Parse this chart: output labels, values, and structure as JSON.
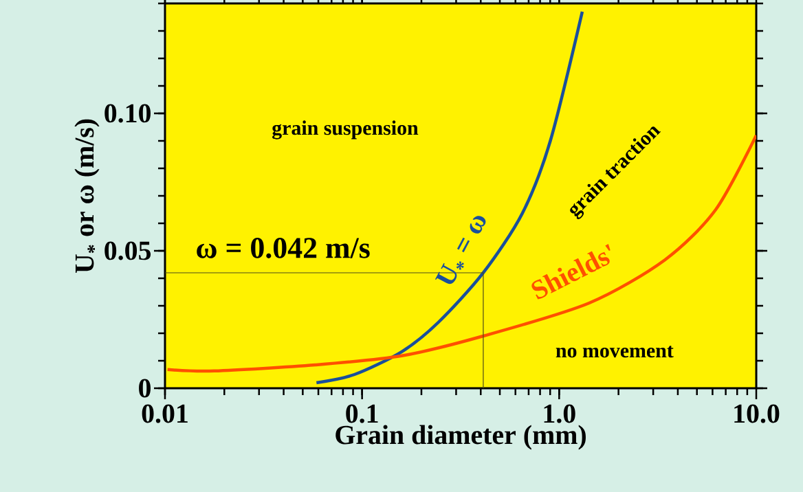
{
  "chart_data": {
    "type": "line",
    "xlabel": "Grain diameter (mm)",
    "ylabel": "U$_{*}$ or ω (m/s)",
    "log": "x",
    "xlim": [
      0.01,
      10
    ],
    "ylim": [
      0,
      0.14
    ],
    "xticks": [
      {
        "value": 0.01,
        "label": "0.01"
      },
      {
        "value": 0.1,
        "label": "0.1"
      },
      {
        "value": 1,
        "label": "1.0"
      },
      {
        "value": 10,
        "label": "10.0"
      }
    ],
    "yticks": [
      0,
      0.05,
      {
        "value": 0.1,
        "label": "0.10"
      }
    ],
    "grid": false,
    "legend": false,
    "marker": "none",
    "line_style": "solid",
    "series": [
      {
        "name": "U$_{*}$ = ω",
        "color": "#1a4f9c",
        "x": [
          0.0587,
          0.0915,
          0.159,
          0.244,
          0.412,
          0.651,
          0.902,
          1.31
        ],
        "values": [
          0.002,
          0.005,
          0.0133,
          0.024,
          0.042,
          0.0637,
          0.09,
          0.137
        ]
      },
      {
        "name": "Shields'",
        "color": "#ff5000",
        "x": [
          0.0103,
          0.0178,
          0.058,
          0.159,
          0.412,
          1.42,
          3.44,
          6.23,
          10
        ],
        "values": [
          0.0068,
          0.0063,
          0.0085,
          0.0118,
          0.019,
          0.031,
          0.0467,
          0.065,
          0.092
        ]
      },
      {
        "color": "#4d4d1a",
        "x": [
          0.01,
          0.412,
          0.412
        ],
        "values": [
          0.042,
          0.042,
          0
        ]
      }
    ],
    "annotations": [
      "ω = 0.042 m/s",
      "grain suspension",
      "grain traction",
      "no movement"
    ]
  }
}
